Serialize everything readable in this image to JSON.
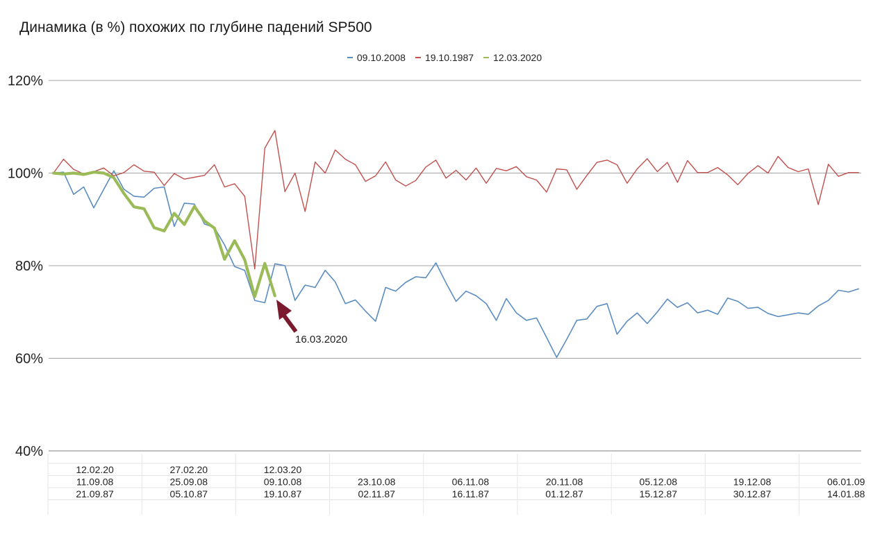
{
  "chart_data": {
    "type": "line",
    "title": "Динамика (в %) похожих по глубине падений SP500",
    "xlabel": "",
    "ylabel": "",
    "ylim": [
      40,
      120
    ],
    "y_ticks": [
      "120%",
      "100%",
      "80%",
      "60%",
      "40%"
    ],
    "grid": true,
    "legend_position": "top-center",
    "series": [
      {
        "name": "09.10.2008",
        "color": "#5b8cc0",
        "values": [
          100,
          100.2,
          95.4,
          97,
          92.5,
          96.5,
          100.5,
          96.5,
          95,
          94.8,
          96.7,
          97,
          88.5,
          93.5,
          93.3,
          89,
          88.2,
          84.5,
          79.8,
          79,
          72.5,
          72,
          80.4,
          80,
          72.5,
          75.8,
          75.3,
          79,
          76.5,
          71.8,
          72.6,
          70.2,
          68,
          75.3,
          74.5,
          76.4,
          77.6,
          77.4,
          80.6,
          76.3,
          72.3,
          74.5,
          73.5,
          71.8,
          68.2,
          72.9,
          69.8,
          68.2,
          68.7,
          64.5,
          60.2,
          64.1,
          68.2,
          68.5,
          71.2,
          71.8,
          65.2,
          68,
          69.8,
          67.5,
          70,
          72.8,
          71,
          72,
          69.8,
          70.4,
          69.5,
          73,
          72.3,
          70.8,
          71,
          69.7,
          69,
          69.4,
          69.8,
          69.5,
          71.3,
          72.5,
          74.7,
          74.3,
          75
        ]
      },
      {
        "name": "19.10.1987",
        "color": "#c0504d",
        "values": [
          100,
          103,
          100.8,
          99.8,
          100.3,
          101.1,
          99.4,
          100.1,
          101.8,
          100.4,
          100.2,
          97.3,
          99.9,
          98.7,
          99.1,
          99.5,
          101.8,
          97,
          97.7,
          95,
          79.3,
          105.4,
          109.2,
          96,
          100,
          91.7,
          102.4,
          100,
          105,
          103,
          101.8,
          98.2,
          99.4,
          102.4,
          98.5,
          97.2,
          98.4,
          101.3,
          102.8,
          98.9,
          100.6,
          98.5,
          101.1,
          97.8,
          101,
          100.5,
          101.4,
          99.2,
          98.5,
          95.9,
          100.9,
          100.7,
          96.5,
          99.5,
          102.3,
          102.8,
          101.8,
          97.8,
          100.9,
          103.1,
          100.3,
          102.3,
          98,
          102.7,
          100.1,
          100.1,
          101.2,
          99.6,
          97.5,
          99.9,
          101.6,
          100,
          103.6,
          101.2,
          100.3,
          100.9,
          93.2,
          101.9,
          99.3,
          100.1,
          100.1
        ]
      },
      {
        "name": "12.03.2020",
        "color": "#9bbb59",
        "values": [
          100,
          99.8,
          100,
          99.7,
          100.2,
          100,
          99,
          95.6,
          92.7,
          92.3,
          88.2,
          87.5,
          91.3,
          88.9,
          92.8,
          89.7,
          88.1,
          81.4,
          85.4,
          81.3,
          73.3,
          80.5,
          73.5
        ]
      }
    ],
    "date_rows": [
      [
        "12.02.20",
        "27.02.20",
        "12.03.20",
        "",
        "",
        "",
        "",
        "",
        ""
      ],
      [
        "11.09.08",
        "25.09.08",
        "09.10.08",
        "23.10.08",
        "06.11.08",
        "20.11.08",
        "05.12.08",
        "19.12.08",
        "06.01.09"
      ],
      [
        "21.09.87",
        "05.10.87",
        "19.10.87",
        "02.11.87",
        "16.11.87",
        "01.12.87",
        "15.12.87",
        "30.12.87",
        "14.01.88"
      ]
    ],
    "annotations": [
      {
        "text": "16.03.2020",
        "arrow_color": "#7b1a2e"
      }
    ]
  }
}
